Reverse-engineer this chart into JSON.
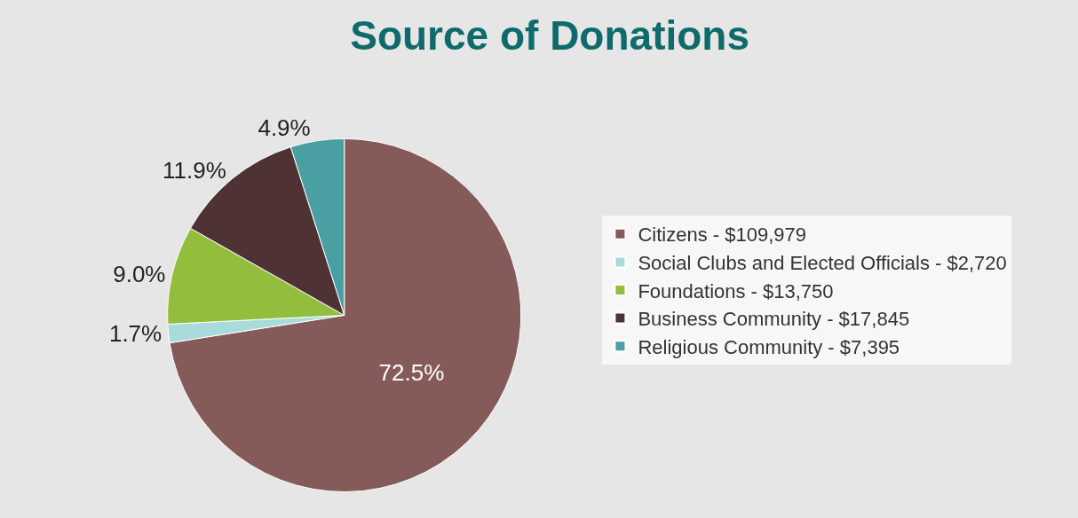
{
  "chart_data": {
    "type": "pie",
    "title": "Source of Donations",
    "categories": [
      "Citizens - $109,979",
      "Social Clubs and Elected Officials - $2,720",
      "Foundations - $13,750",
      "Business Community - $17,845",
      "Religious Community - $7,395"
    ],
    "values": [
      72.5,
      1.7,
      9.0,
      11.9,
      4.9
    ],
    "value_labels": [
      "72.5%",
      "1.7%",
      "9.0%",
      "11.9%",
      "4.9%"
    ],
    "colors": [
      "#855b5a",
      "#a9dadc",
      "#93be3d",
      "#4f3234",
      "#4a9fa3"
    ],
    "legend": "right"
  }
}
